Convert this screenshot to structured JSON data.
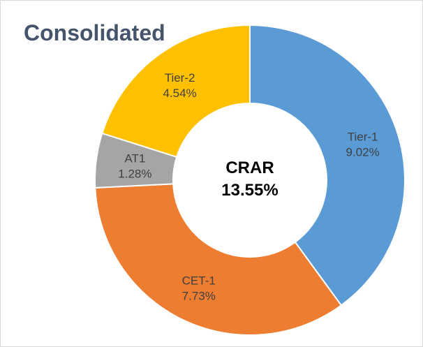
{
  "chart_data": {
    "type": "donut",
    "title": "Consolidated",
    "categories": [
      "Tier-1",
      "CET-1",
      "AT1",
      "Tier-2"
    ],
    "values": [
      9.02,
      7.73,
      1.28,
      4.54
    ],
    "value_labels": [
      "9.02%",
      "7.73%",
      "1.28%",
      "4.54%"
    ],
    "colors": [
      "#5b9bd5",
      "#ed7d31",
      "#a5a5a5",
      "#ffc000"
    ],
    "center_label": "CRAR",
    "center_value_label": "13.55%"
  }
}
